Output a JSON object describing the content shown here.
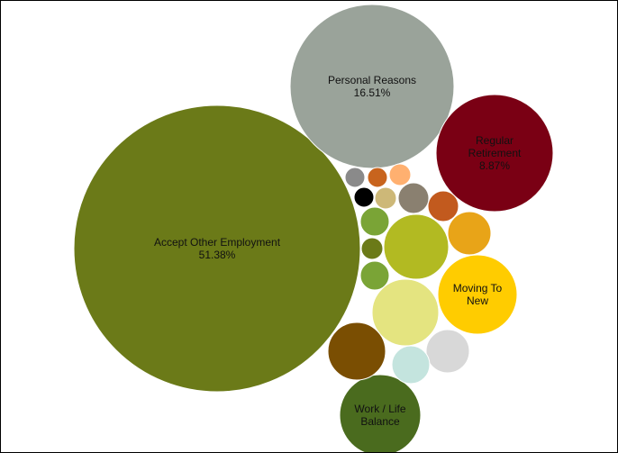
{
  "chart_data": {
    "type": "bubble",
    "title": "",
    "legend": "none",
    "bubbles": [
      {
        "label": [
          "Accept Other Employment",
          "51.38%"
        ],
        "value": 51.38,
        "color": "#6b7a18"
      },
      {
        "label": [
          "Personal Reasons",
          "16.51%"
        ],
        "value": 16.51,
        "color": "#9aa39a"
      },
      {
        "label": [
          "Regular",
          "Retirement",
          "8.87%"
        ],
        "value": 8.87,
        "color": "#7a0014"
      },
      {
        "label": [
          "Moving To",
          "New"
        ],
        "value": null,
        "color": "#ffcc00"
      },
      {
        "label": [
          "Work / Life",
          "Balance"
        ],
        "value": null,
        "color": "#4a6b1e"
      },
      {
        "label": [],
        "value": null,
        "color": "#e4e480"
      },
      {
        "label": [],
        "value": null,
        "color": "#b2ba22"
      },
      {
        "label": [],
        "value": null,
        "color": "#7a4e02"
      },
      {
        "label": [],
        "value": null,
        "color": "#e8a418"
      },
      {
        "label": [],
        "value": null,
        "color": "#d8d8d8"
      },
      {
        "label": [],
        "value": null,
        "color": "#c4e4de"
      },
      {
        "label": [],
        "value": null,
        "color": "#c25a1e"
      },
      {
        "label": [],
        "value": null,
        "color": "#8a8070"
      },
      {
        "label": [],
        "value": null,
        "color": "#7aa436"
      },
      {
        "label": [],
        "value": null,
        "color": "#7aa436"
      },
      {
        "label": [],
        "value": null,
        "color": "#6b7a18"
      },
      {
        "label": [],
        "value": null,
        "color": "#cdb878"
      },
      {
        "label": [],
        "value": null,
        "color": "#000000"
      },
      {
        "label": [],
        "value": null,
        "color": "#8a8a8a"
      },
      {
        "label": [],
        "value": null,
        "color": "#c8641e"
      },
      {
        "label": [],
        "value": null,
        "color": "#ffb070"
      }
    ]
  }
}
